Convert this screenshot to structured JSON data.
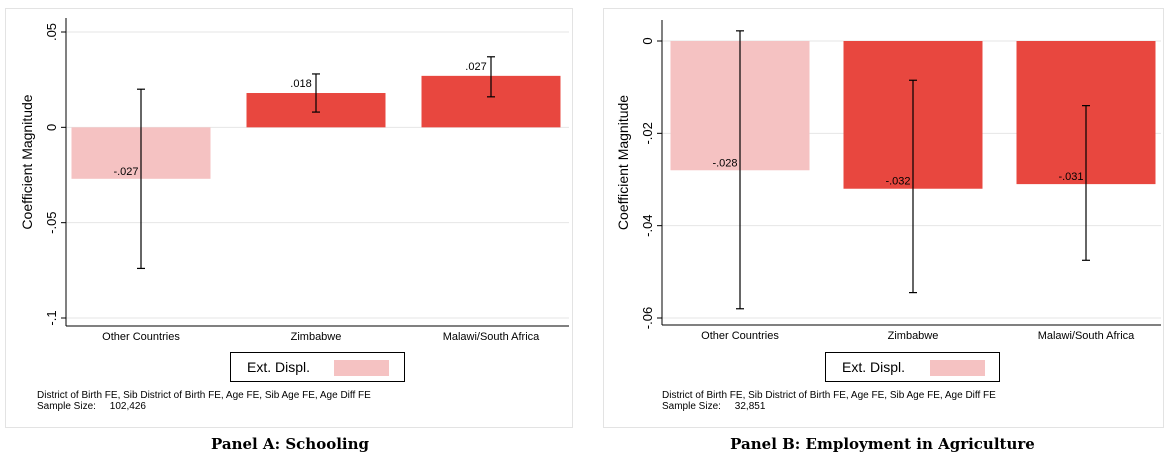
{
  "chart_data": [
    {
      "type": "bar",
      "caption": "Panel A: Schooling",
      "ylabel": "Coefficient Magnitude",
      "ylim": [
        -0.1,
        0.05
      ],
      "yticks": [
        0.05,
        0,
        -0.05,
        -0.1
      ],
      "ytick_labels": [
        ".05",
        "0",
        "-.05",
        "-.1"
      ],
      "grid": true,
      "categories": [
        "Other Countries",
        "Zimbabwe",
        "Malawi/South Africa"
      ],
      "values": [
        -0.027,
        0.018,
        0.027
      ],
      "value_labels": [
        "-.027",
        ".018",
        ".027"
      ],
      "ci_low": [
        -0.074,
        0.008,
        0.016
      ],
      "ci_high": [
        0.02,
        0.028,
        0.037
      ],
      "bar_colors": [
        "#f5c2c2",
        "#e8473f",
        "#e8473f"
      ],
      "legend": [
        {
          "label": "Ext. Displ.",
          "color": "#f5c2c2"
        }
      ],
      "notes": [
        "District of Birth FE, Sib District of Birth FE, Age FE, Sib Age FE, Age Diff FE",
        "Sample Size:     102,426"
      ]
    },
    {
      "type": "bar",
      "caption": "Panel B: Employment in Agriculture",
      "ylabel": "Coefficient Magnitude",
      "ylim": [
        -0.062,
        0.004
      ],
      "yticks": [
        0,
        -0.02,
        -0.04,
        -0.06
      ],
      "ytick_labels": [
        "0",
        "-.02",
        "-.04",
        "-.06"
      ],
      "grid": true,
      "categories": [
        "Other Countries",
        "Zimbabwe",
        "Malawi/South Africa"
      ],
      "values": [
        -0.028,
        -0.032,
        -0.031
      ],
      "value_labels": [
        "-.028",
        "-.032",
        "-.031"
      ],
      "ci_low": [
        -0.058,
        -0.0545,
        -0.0475
      ],
      "ci_high": [
        0.0022,
        -0.0085,
        -0.014
      ],
      "bar_colors": [
        "#f5c2c2",
        "#e8473f",
        "#e8473f"
      ],
      "legend": [
        {
          "label": "Ext. Displ.",
          "color": "#f5c2c2"
        }
      ],
      "notes": [
        "District of Birth FE, Sib District of Birth FE, Age FE, Sib Age FE, Age Diff FE",
        "Sample Size:     32,851"
      ]
    }
  ]
}
